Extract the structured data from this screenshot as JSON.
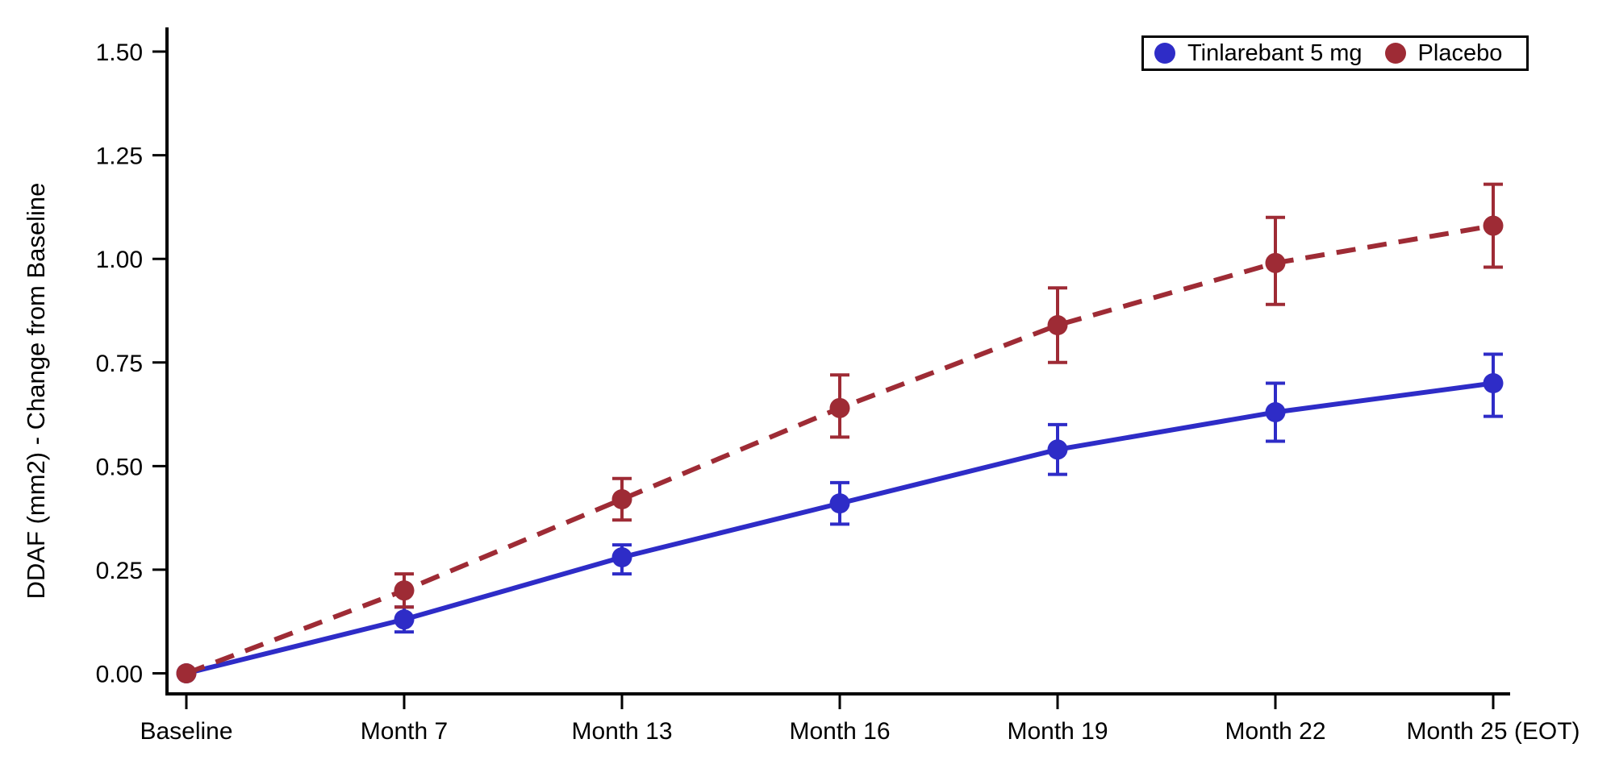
{
  "chart_data": {
    "type": "line",
    "title": "",
    "xlabel": "",
    "ylabel": "DDAF (mm2) - Change from Baseline",
    "ylim": [
      0,
      1.5
    ],
    "grid": false,
    "legend_position": "top-right",
    "y_tick_labels": [
      "0.00",
      "0.25",
      "0.50",
      "0.75",
      "1.00",
      "1.25",
      "1.50"
    ],
    "categories": [
      "Baseline",
      "Month 7",
      "Month 13",
      "Month 16",
      "Month 19",
      "Month 22",
      "Month 25 (EOT)"
    ],
    "series": [
      {
        "name": "Tinlarebant 5 mg",
        "color": "#2e2cc7",
        "line_style": "solid",
        "marker": "circle",
        "values": [
          0.0,
          0.13,
          0.28,
          0.41,
          0.54,
          0.63,
          0.7
        ],
        "ci_low": [
          null,
          0.1,
          0.24,
          0.36,
          0.48,
          0.56,
          0.62
        ],
        "ci_high": [
          null,
          0.16,
          0.31,
          0.46,
          0.6,
          0.7,
          0.77
        ]
      },
      {
        "name": "Placebo",
        "color": "#9e2b35",
        "line_style": "dashed",
        "marker": "circle",
        "values": [
          0.0,
          0.2,
          0.42,
          0.64,
          0.84,
          0.99,
          1.08
        ],
        "ci_low": [
          null,
          0.16,
          0.37,
          0.57,
          0.75,
          0.89,
          0.98
        ],
        "ci_high": [
          null,
          0.24,
          0.47,
          0.72,
          0.93,
          1.1,
          1.18
        ]
      }
    ]
  }
}
